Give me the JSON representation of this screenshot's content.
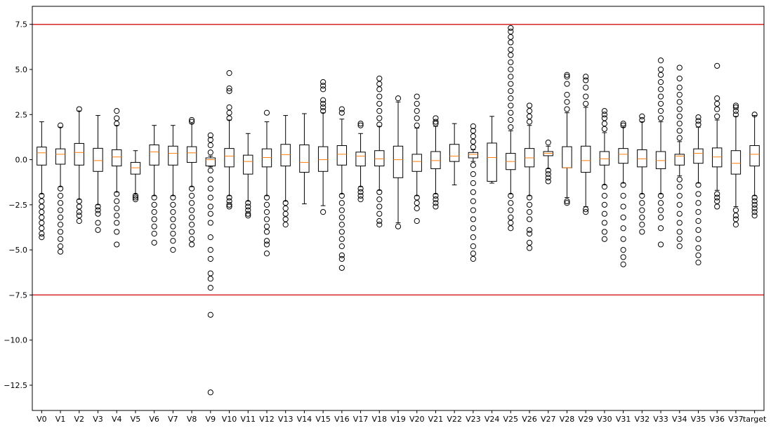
{
  "chart_data": {
    "type": "box",
    "title": "",
    "xlabel": "",
    "ylabel": "",
    "ylim": [
      -13.9,
      8.5
    ],
    "y_ticks": [
      -12.5,
      -10.0,
      -7.5,
      -5.0,
      -2.5,
      0.0,
      2.5,
      5.0,
      7.5
    ],
    "y_tick_labels": [
      "−12.5",
      "−10.0",
      "−7.5",
      "−5.0",
      "−2.5",
      "0.0",
      "2.5",
      "5.0",
      "7.5"
    ],
    "reference_lines": [
      {
        "y": 7.5,
        "color": "#d62728"
      },
      {
        "y": -7.5,
        "color": "#d62728"
      }
    ],
    "grid": false,
    "colors": {
      "box": "#000000",
      "median": "#ff7f0e",
      "reference": "#d62728",
      "flier_edge": "#000000"
    },
    "categories": [
      "V0",
      "V1",
      "V2",
      "V3",
      "V4",
      "V5",
      "V6",
      "V7",
      "V8",
      "V9",
      "V10",
      "V11",
      "V12",
      "V13",
      "V14",
      "V15",
      "V16",
      "V17",
      "V18",
      "V19",
      "V20",
      "V21",
      "V22",
      "V23",
      "V24",
      "V25",
      "V26",
      "V27",
      "V28",
      "V29",
      "V30",
      "V31",
      "V32",
      "V33",
      "V34",
      "V35",
      "V36",
      "V37",
      "target"
    ],
    "boxes": [
      {
        "name": "V0",
        "whislo": -1.9,
        "q1": -0.3,
        "med": 0.38,
        "q3": 0.7,
        "whishi": 2.1,
        "fliers": [
          -2.0,
          -2.3,
          -2.6,
          -2.9,
          -3.2,
          -3.5,
          -3.8,
          -4.1,
          -4.3
        ]
      },
      {
        "name": "V1",
        "whislo": -1.5,
        "q1": -0.25,
        "med": 0.3,
        "q3": 0.6,
        "whishi": 1.8,
        "fliers": [
          1.9,
          -1.6,
          -2.0,
          -2.4,
          -2.8,
          -3.2,
          -3.6,
          -4.0,
          -4.4,
          -4.8,
          -5.1
        ]
      },
      {
        "name": "V2",
        "whislo": -2.2,
        "q1": -0.3,
        "med": 0.4,
        "q3": 0.9,
        "whishi": 2.7,
        "fliers": [
          2.8,
          -2.3,
          -2.6,
          -2.9,
          -3.1,
          -3.4
        ]
      },
      {
        "name": "V3",
        "whislo": -2.5,
        "q1": -0.65,
        "med": -0.05,
        "q3": 0.63,
        "whishi": 2.45,
        "fliers": [
          -2.6,
          -2.8,
          -3.0,
          -3.5,
          -3.9
        ]
      },
      {
        "name": "V4",
        "whislo": -1.8,
        "q1": -0.35,
        "med": 0.15,
        "q3": 0.55,
        "whishi": 1.9,
        "fliers": [
          2.0,
          2.3,
          2.7,
          -1.9,
          -2.3,
          -2.7,
          -3.1,
          -3.5,
          -4.0,
          -4.7
        ]
      },
      {
        "name": "V5",
        "whislo": -1.9,
        "q1": -0.8,
        "med": -0.45,
        "q3": -0.15,
        "whishi": 0.5,
        "fliers": [
          -2.0,
          -2.1,
          -2.2
        ]
      },
      {
        "name": "V6",
        "whislo": -2.0,
        "q1": -0.3,
        "med": 0.43,
        "q3": 0.82,
        "whishi": 1.9,
        "fliers": [
          -2.1,
          -2.5,
          -2.9,
          -3.3,
          -3.7,
          -4.1,
          -4.6
        ]
      },
      {
        "name": "V7",
        "whislo": -2.0,
        "q1": -0.3,
        "med": 0.35,
        "q3": 0.75,
        "whishi": 1.9,
        "fliers": [
          -2.1,
          -2.5,
          -2.9,
          -3.3,
          -3.7,
          -4.1,
          -4.5,
          -5.0
        ]
      },
      {
        "name": "V8",
        "whislo": -1.5,
        "q1": -0.15,
        "med": 0.38,
        "q3": 0.72,
        "whishi": 2.0,
        "fliers": [
          2.1,
          2.2,
          -1.6,
          -2.0,
          -2.4,
          -2.8,
          -3.2,
          -3.6,
          -4.0,
          -4.4,
          -4.7
        ]
      },
      {
        "name": "V9",
        "whislo": -0.4,
        "q1": -0.35,
        "med": 0.0,
        "q3": 0.1,
        "whishi": 0.2,
        "fliers": [
          0.4,
          0.8,
          1.1,
          1.35,
          -0.6,
          -1.1,
          -1.6,
          -2.1,
          -2.6,
          -3.0,
          -3.5,
          -4.3,
          -5.0,
          -5.5,
          -6.3,
          -6.6,
          -7.1,
          -8.6,
          -12.9
        ]
      },
      {
        "name": "V10",
        "whislo": -2.0,
        "q1": -0.4,
        "med": 0.2,
        "q3": 0.62,
        "whishi": 2.2,
        "fliers": [
          2.3,
          2.6,
          2.9,
          3.8,
          3.95,
          4.8,
          -2.1,
          -2.3,
          -2.5,
          -2.6
        ]
      },
      {
        "name": "V11",
        "whislo": -2.3,
        "q1": -0.8,
        "med": -0.1,
        "q3": 0.25,
        "whishi": 1.45,
        "fliers": [
          -2.4,
          -2.6,
          -2.8,
          -3.0,
          -3.1
        ]
      },
      {
        "name": "V12",
        "whislo": -2.0,
        "q1": -0.4,
        "med": 0.12,
        "q3": 0.6,
        "whishi": 2.1,
        "fliers": [
          2.6,
          -2.1,
          -2.5,
          -2.9,
          -3.3,
          -3.7,
          -4.0,
          -4.5,
          -4.7,
          -5.2
        ]
      },
      {
        "name": "V13",
        "whislo": -2.3,
        "q1": -0.35,
        "med": 0.28,
        "q3": 0.85,
        "whishi": 2.45,
        "fliers": [
          -2.4,
          -2.7,
          -3.0,
          -3.3,
          -3.6
        ]
      },
      {
        "name": "V14",
        "whislo": -2.45,
        "q1": -0.7,
        "med": -0.15,
        "q3": 0.82,
        "whishi": 2.55,
        "fliers": []
      },
      {
        "name": "V15",
        "whislo": -2.55,
        "q1": -0.65,
        "med": 0.0,
        "q3": 0.72,
        "whishi": 2.6,
        "fliers": [
          2.7,
          2.9,
          3.1,
          3.3,
          3.9,
          4.1,
          4.3,
          -2.9
        ]
      },
      {
        "name": "V16",
        "whislo": -1.9,
        "q1": -0.3,
        "med": 0.3,
        "q3": 0.78,
        "whishi": 2.25,
        "fliers": [
          2.6,
          2.8,
          -2.0,
          -2.4,
          -2.8,
          -3.2,
          -3.6,
          -4.0,
          -4.4,
          -4.8,
          -5.3,
          -5.5,
          -6.0
        ]
      },
      {
        "name": "V17",
        "whislo": -1.5,
        "q1": -0.35,
        "med": 0.2,
        "q3": 0.42,
        "whishi": 1.45,
        "fliers": [
          1.9,
          2.0,
          -1.6,
          -1.8,
          -2.0,
          -2.2
        ]
      },
      {
        "name": "V18",
        "whislo": -1.7,
        "q1": -0.35,
        "med": 0.05,
        "q3": 0.5,
        "whishi": 1.85,
        "fliers": [
          1.95,
          2.3,
          2.7,
          3.1,
          3.5,
          3.9,
          4.2,
          4.5,
          -1.8,
          -2.2,
          -2.6,
          -3.0,
          -3.4,
          -3.6
        ]
      },
      {
        "name": "V19",
        "whislo": -3.5,
        "q1": -1.0,
        "med": 0.0,
        "q3": 0.75,
        "whishi": 3.2,
        "fliers": [
          3.4,
          -3.7
        ]
      },
      {
        "name": "V20",
        "whislo": -2.0,
        "q1": -0.65,
        "med": -0.1,
        "q3": 0.3,
        "whishi": 1.75,
        "fliers": [
          1.9,
          2.3,
          2.7,
          3.1,
          3.5,
          -2.1,
          -2.4,
          -2.7,
          -3.4
        ]
      },
      {
        "name": "V21",
        "whislo": -1.9,
        "q1": -0.5,
        "med": -0.05,
        "q3": 0.45,
        "whishi": 1.85,
        "fliers": [
          2.0,
          2.1,
          2.3,
          -2.0,
          -2.2,
          -2.4,
          -2.6
        ]
      },
      {
        "name": "V22",
        "whislo": -1.4,
        "q1": -0.1,
        "med": 0.2,
        "q3": 0.85,
        "whishi": 2.0,
        "fliers": []
      },
      {
        "name": "V23",
        "whislo": -0.1,
        "q1": 0.1,
        "med": 0.3,
        "q3": 0.4,
        "whishi": 0.55,
        "fliers": [
          0.7,
          1.0,
          1.3,
          1.6,
          1.85,
          -0.3,
          -0.8,
          -1.3,
          -1.8,
          -2.3,
          -2.8,
          -3.3,
          -3.8,
          -4.3,
          -4.8,
          -5.2,
          -5.5
        ]
      },
      {
        "name": "V24",
        "whislo": -1.3,
        "q1": -1.2,
        "med": 0.12,
        "q3": 0.92,
        "whishi": 2.4,
        "fliers": []
      },
      {
        "name": "V25",
        "whislo": -1.9,
        "q1": -0.55,
        "med": -0.1,
        "q3": 0.35,
        "whishi": 1.6,
        "fliers": [
          1.8,
          2.2,
          2.6,
          3.0,
          3.4,
          3.8,
          4.2,
          4.6,
          5.0,
          5.4,
          5.8,
          6.1,
          6.5,
          6.8,
          7.1,
          7.3,
          -2.0,
          -2.4,
          -2.8,
          -3.2,
          -3.5,
          -3.8
        ]
      },
      {
        "name": "V26",
        "whislo": -2.0,
        "q1": -0.4,
        "med": 0.1,
        "q3": 0.62,
        "whishi": 1.9,
        "fliers": [
          2.1,
          2.4,
          2.7,
          3.0,
          -2.1,
          -2.5,
          -2.9,
          -3.3,
          -3.9,
          -4.1,
          -4.6,
          -4.9
        ]
      },
      {
        "name": "V27",
        "whislo": -0.5,
        "q1": 0.22,
        "med": 0.35,
        "q3": 0.45,
        "whishi": 0.75,
        "fliers": [
          0.95,
          -0.6,
          -0.8,
          -1.0,
          -1.2
        ]
      },
      {
        "name": "V28",
        "whislo": -2.1,
        "q1": -0.45,
        "med": -0.45,
        "q3": 0.72,
        "whishi": 2.6,
        "fliers": [
          2.8,
          3.2,
          3.6,
          4.2,
          4.6,
          4.7,
          -2.3,
          -2.4
        ]
      },
      {
        "name": "V29",
        "whislo": -2.6,
        "q1": -0.7,
        "med": -0.05,
        "q3": 0.75,
        "whishi": 2.9,
        "fliers": [
          3.1,
          3.5,
          4.0,
          4.4,
          4.6,
          -2.75,
          -2.9
        ]
      },
      {
        "name": "V30",
        "whislo": -1.4,
        "q1": -0.3,
        "med": 0.05,
        "q3": 0.45,
        "whishi": 1.5,
        "fliers": [
          1.7,
          2.0,
          2.3,
          2.5,
          2.7,
          -1.5,
          -2.0,
          -2.5,
          -3.0,
          -3.5,
          -4.0,
          -4.4
        ]
      },
      {
        "name": "V31",
        "whislo": -1.3,
        "q1": -0.2,
        "med": 0.3,
        "q3": 0.62,
        "whishi": 1.8,
        "fliers": [
          1.9,
          2.0,
          -1.4,
          -2.0,
          -2.6,
          -3.2,
          -3.8,
          -4.4,
          -5.0,
          -5.4,
          -5.8
        ]
      },
      {
        "name": "V32",
        "whislo": -1.9,
        "q1": -0.4,
        "med": 0.05,
        "q3": 0.55,
        "whishi": 2.1,
        "fliers": [
          2.2,
          2.4,
          -2.0,
          -2.4,
          -2.8,
          -3.2,
          -3.6,
          -4.0
        ]
      },
      {
        "name": "V33",
        "whislo": -1.9,
        "q1": -0.5,
        "med": -0.05,
        "q3": 0.45,
        "whishi": 2.1,
        "fliers": [
          2.3,
          2.7,
          3.1,
          3.5,
          3.9,
          4.3,
          4.7,
          5.0,
          5.5,
          -2.0,
          -2.4,
          -2.8,
          -3.2,
          -3.8,
          -4.7
        ]
      },
      {
        "name": "V34",
        "whislo": -0.9,
        "q1": -0.3,
        "med": 0.2,
        "q3": 0.3,
        "whishi": 1.0,
        "fliers": [
          1.2,
          1.6,
          2.0,
          2.4,
          2.8,
          3.2,
          3.6,
          4.0,
          4.5,
          5.1,
          -1.1,
          -1.5,
          -2.0,
          -2.5,
          -3.0,
          -3.5,
          -4.0,
          -4.4,
          -4.8
        ]
      },
      {
        "name": "V35",
        "whislo": -1.3,
        "q1": -0.2,
        "med": 0.35,
        "q3": 0.6,
        "whishi": 1.8,
        "fliers": [
          1.95,
          2.15,
          2.35,
          -1.4,
          -1.9,
          -2.4,
          -2.9,
          -3.4,
          -3.9,
          -4.4,
          -4.9,
          -5.3,
          -5.7
        ]
      },
      {
        "name": "V36",
        "whislo": -1.7,
        "q1": -0.4,
        "med": 0.15,
        "q3": 0.65,
        "whishi": 2.2,
        "fliers": [
          2.4,
          2.8,
          3.1,
          3.4,
          5.2,
          -1.9,
          -2.1,
          -2.3,
          -2.6
        ]
      },
      {
        "name": "V37",
        "whislo": -2.6,
        "q1": -0.8,
        "med": -0.2,
        "q3": 0.5,
        "whishi": 2.4,
        "fliers": [
          2.5,
          2.7,
          2.9,
          3.0,
          -2.8,
          -3.1,
          -3.3,
          -3.6
        ]
      },
      {
        "name": "target",
        "whislo": -2.0,
        "q1": -0.35,
        "med": 0.3,
        "q3": 0.78,
        "whishi": 2.45,
        "fliers": [
          2.5,
          -2.1,
          -2.3,
          -2.5,
          -2.7,
          -2.9,
          -3.1
        ]
      }
    ]
  }
}
